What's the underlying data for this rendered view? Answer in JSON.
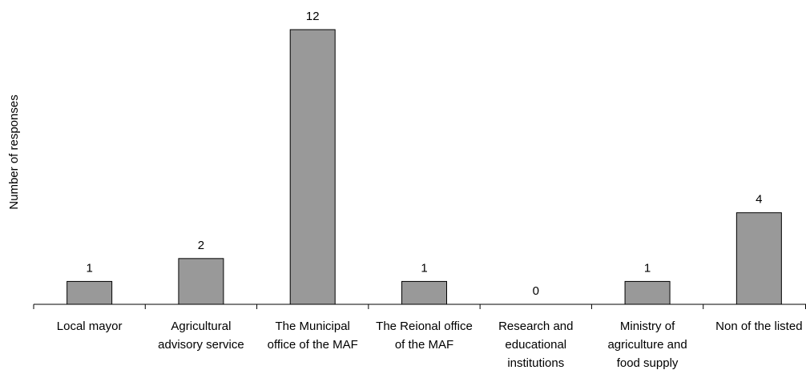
{
  "chart_data": {
    "type": "bar",
    "ylabel": "Number of responses",
    "categories": [
      "Local mayor",
      "Agricultural advisory service",
      "The Municipal office of the MAF",
      "The Reional office of the MAF",
      "Research and educational institutions",
      "Ministry of agriculture and food supply",
      "Non of the listed"
    ],
    "values": [
      1,
      2,
      12,
      1,
      0,
      1,
      4
    ],
    "color": "#999999"
  }
}
